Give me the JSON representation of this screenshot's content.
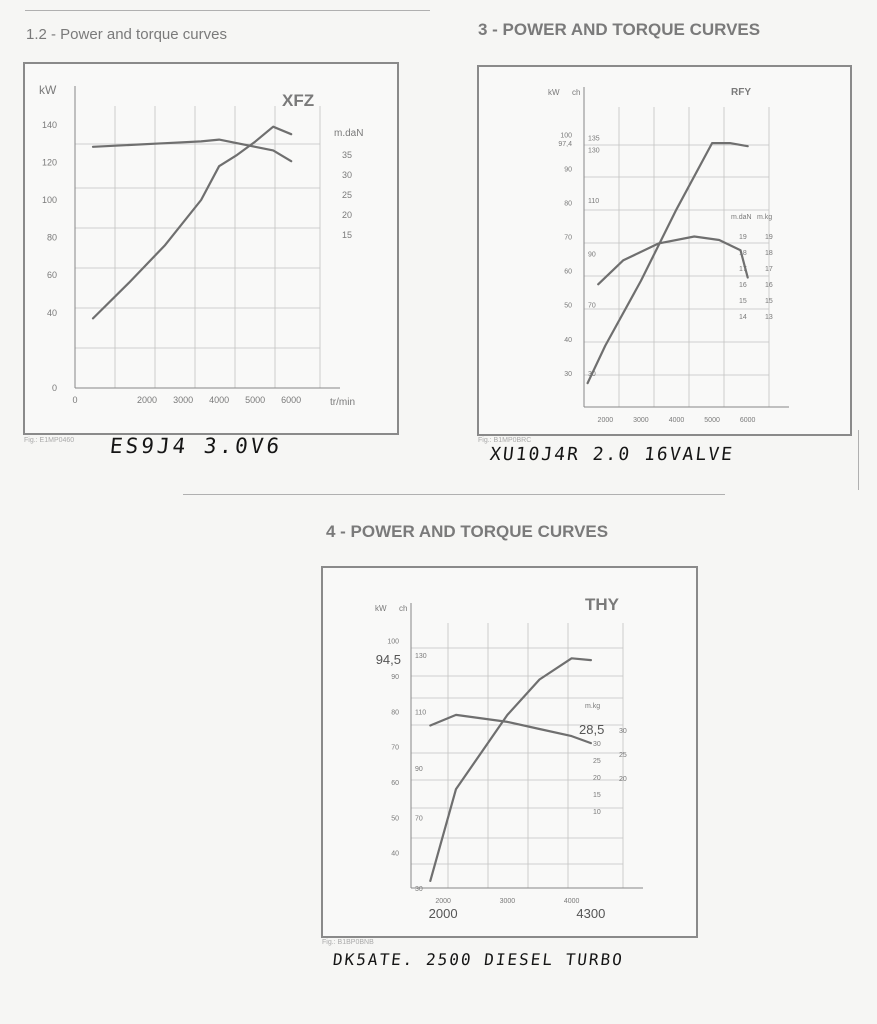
{
  "colors": {
    "grid": "#c2c2c2",
    "curve": "#6f6f6f",
    "text": "#7a7a7a",
    "frame": "#8a8a8a",
    "ink": "#151515"
  },
  "top_left": {
    "heading": "1.2 - Power and torque curves",
    "handwritten": "ES9J4 3.0V6",
    "figure_ref": "Fig.: E1MP0460"
  },
  "top_right": {
    "heading": "3 - POWER AND TORQUE CURVES",
    "handwritten": "XU10J4R 2.0 16VALVE",
    "figure_ref": "Fig.: B1MP0BRC"
  },
  "bottom": {
    "heading": "4 - POWER AND TORQUE CURVES",
    "handwritten": "DK5ATE. 2500 DIESEL TURBO",
    "figure_ref": "Fig.: B1BP0BNB"
  },
  "chart_data": [
    {
      "type": "line",
      "title": "XFZ",
      "xlabel": "tr/min",
      "ylabel": "kW",
      "y2label": "m.daN",
      "x_ticks": [
        0,
        2000,
        3000,
        4000,
        5000,
        6000
      ],
      "y_ticks": [
        0,
        40,
        60,
        80,
        100,
        120,
        140
      ],
      "y2_ticks": [
        15,
        20,
        25,
        30,
        35
      ],
      "xlim": [
        0,
        6800
      ],
      "ylim": [
        0,
        150
      ],
      "y2lim": [
        -40,
        38.33
      ],
      "grid": true,
      "series": [
        {
          "x": [
            500,
            1500,
            2500,
            3500,
            4000,
            4500,
            5000,
            5500,
            6000
          ],
          "y": [
            37,
            56,
            76,
            100,
            118,
            124,
            131,
            139,
            135
          ]
        },
        {
          "x": [
            500,
            1500,
            2500,
            3500,
            4000,
            4500,
            5000,
            5500,
            6000
          ],
          "y": [
            27,
            27.5,
            28,
            28.5,
            29,
            28,
            27,
            26,
            23
          ],
          "axis": "right"
        }
      ]
    },
    {
      "type": "line",
      "title": "RFY",
      "xlabel": "",
      "ylabel": "kW",
      "y2label": "m.daN",
      "y3label": "m.kg",
      "ch_label": "ch",
      "x_ticks": [
        2000,
        3000,
        4000,
        5000,
        6000
      ],
      "x_tick_labels": [
        "2000",
        "3000",
        "4000",
        "5000",
        "6000"
      ],
      "y_ticks": [
        30,
        40,
        50,
        60,
        70,
        80,
        90,
        100
      ],
      "y_extra_tick": {
        "value": 97.4,
        "label": "97,4"
      },
      "ch_ticks": [
        {
          "value": 30,
          "label": "30"
        },
        {
          "value": 50,
          "label": "70"
        },
        {
          "value": 65,
          "label": "90"
        },
        {
          "value": 80.7,
          "label": "110"
        },
        {
          "value": 95.6,
          "label": "130"
        },
        {
          "value": 99,
          "label": "135"
        }
      ],
      "y2_ticks": [
        14,
        15,
        16,
        17,
        18,
        19
      ],
      "y2_tick_labels": [
        "14",
        "15",
        "16",
        "17",
        "18",
        "19"
      ],
      "y3_ticks": [
        "13",
        "15",
        "16",
        "17",
        "18",
        "19"
      ],
      "xlim": [
        1400,
        6600
      ],
      "ylim": [
        20,
        108
      ],
      "grid": true,
      "series": [
        {
          "x": [
            1500,
            2000,
            3000,
            4000,
            5000,
            5500,
            6000
          ],
          "y": [
            27,
            38,
            57,
            78,
            97.4,
            97.4,
            96.5
          ]
        },
        {
          "x": [
            1800,
            2500,
            3500,
            4500,
            5200,
            5800,
            6000
          ],
          "y": [
            56,
            63,
            68,
            70,
            69,
            66,
            58
          ]
        }
      ]
    },
    {
      "type": "line",
      "title": "THY",
      "xlabel": "",
      "ylabel": "kW",
      "y2label": "m.kg",
      "ch_label": "ch",
      "x_ticks": [
        2000,
        3000,
        4000
      ],
      "x_tick_labels": [
        "2000",
        "3000",
        "4000"
      ],
      "x_annotations": [
        {
          "value": 2000,
          "label": "2000"
        },
        {
          "value": 4300,
          "label": "4300"
        }
      ],
      "y_ticks": [
        40,
        50,
        60,
        70,
        80,
        90,
        100
      ],
      "y_annotation": {
        "value": 94.5,
        "label": "94,5"
      },
      "ch_ticks": [
        {
          "value": 30,
          "label": "30"
        },
        {
          "value": 50,
          "label": "70"
        },
        {
          "value": 64,
          "label": "90"
        },
        {
          "value": 80,
          "label": "110"
        },
        {
          "value": 96,
          "label": "130"
        }
      ],
      "y2_annotation": {
        "value": 28.5,
        "label": "28,5"
      },
      "y2_ticks": [
        10,
        15,
        20,
        25,
        30
      ],
      "y3_ticks": [
        "20",
        "25",
        "30"
      ],
      "xlim": [
        1500,
        4800
      ],
      "ylim": [
        30,
        105
      ],
      "grid": true,
      "series": [
        {
          "x": [
            1800,
            2200,
            3000,
            3500,
            4000,
            4300
          ],
          "y": [
            32,
            58,
            79,
            89,
            95,
            94.5
          ]
        },
        {
          "x": [
            1800,
            2200,
            3000,
            3500,
            4000,
            4300
          ],
          "y": [
            76,
            79,
            77,
            75,
            73,
            71
          ]
        }
      ]
    }
  ]
}
